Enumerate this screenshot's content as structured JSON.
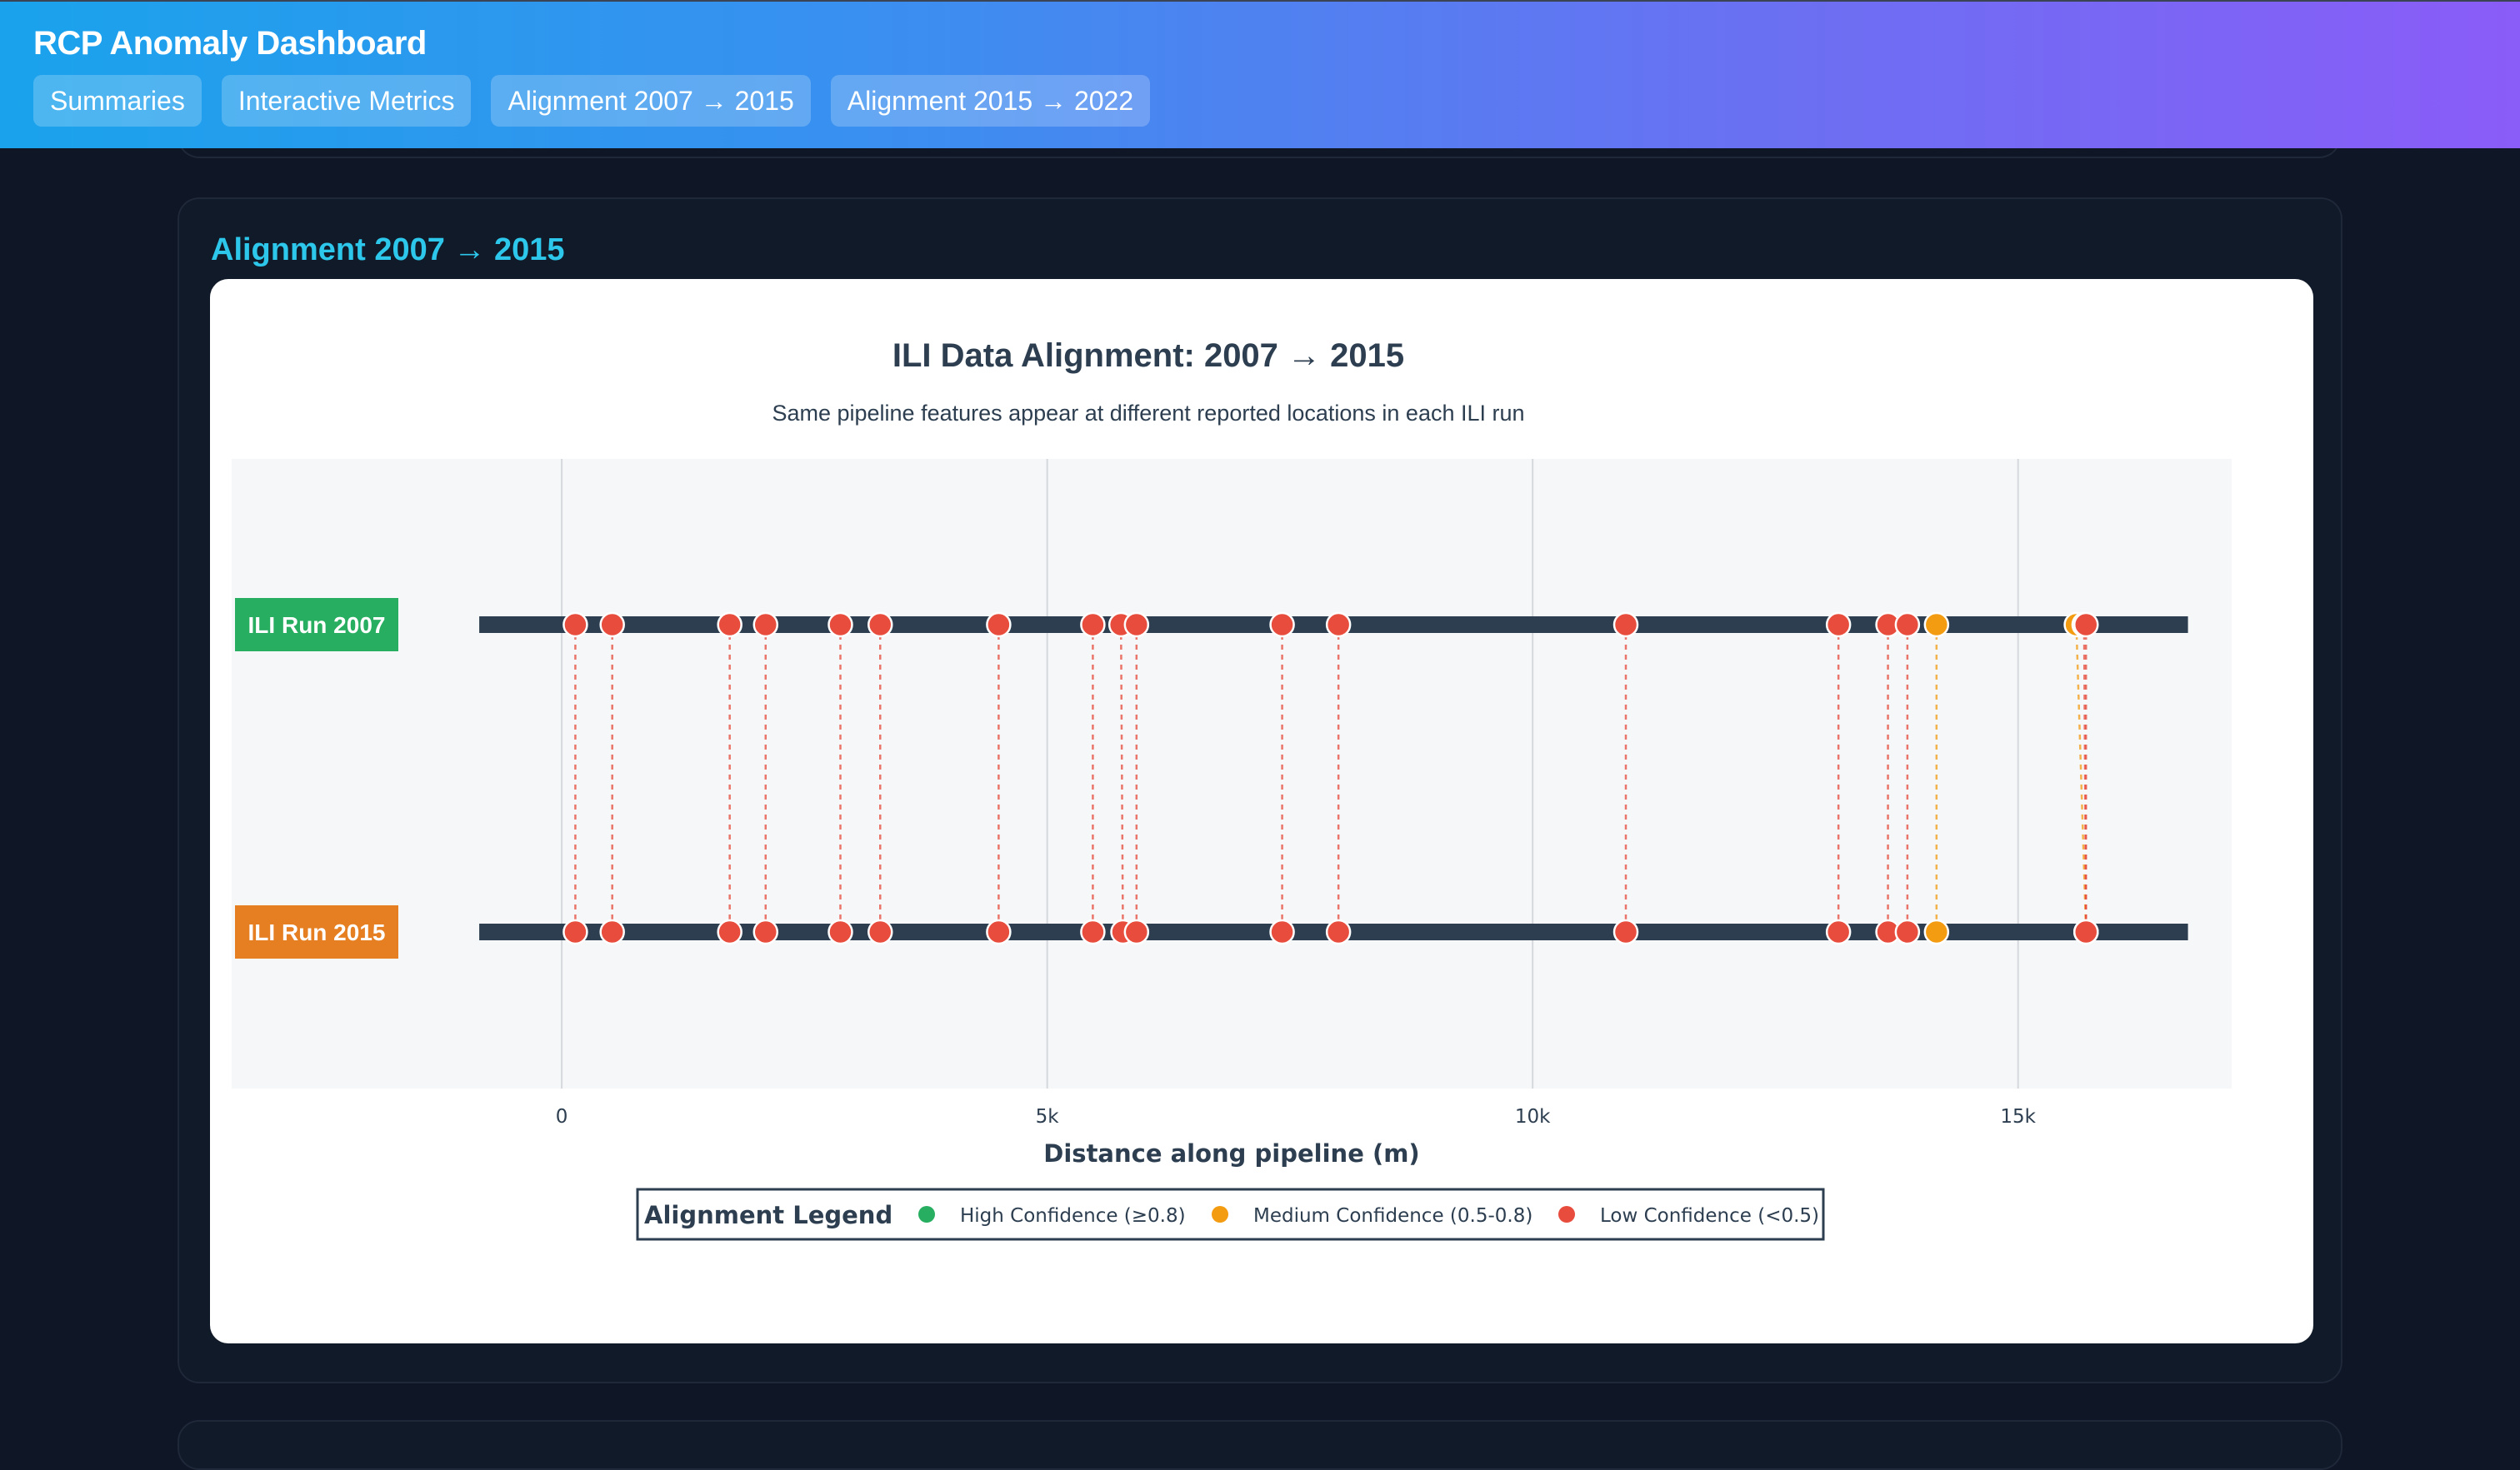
{
  "app": {
    "title": "RCP Anomaly Dashboard",
    "tabs": [
      "Summaries",
      "Interactive Metrics",
      "Alignment 2007 → 2015",
      "Alignment 2015 → 2022"
    ]
  },
  "section": {
    "title": "Alignment 2007 → 2015"
  },
  "colors": {
    "track": "#2c3e50",
    "high": "#27ae60",
    "medium": "#f39c12",
    "low": "#e74c3c",
    "run_a": "#27ae60",
    "run_b": "#e67e22"
  },
  "chart_data": {
    "type": "scatter",
    "title": "ILI Data Alignment: 2007 → 2015",
    "subtitle": "Same pipeline features appear at different reported locations in each ILI run",
    "xlabel": "Distance along pipeline (m)",
    "xlim": [
      -3400,
      17200
    ],
    "xticks": [
      0,
      5000,
      10000,
      15000
    ],
    "xtick_labels": [
      "0",
      "5k",
      "10k",
      "15k"
    ],
    "grid": true,
    "runs": [
      {
        "name": "ILI Run 2007",
        "color": "#27ae60"
      },
      {
        "name": "ILI Run 2015",
        "color": "#e67e22"
      }
    ],
    "track_range": [
      -850,
      16750
    ],
    "legend": {
      "title": "Alignment Legend",
      "placement": "bottom-center",
      "entries": [
        {
          "label": "High Confidence (≥0.8)",
          "color": "#27ae60"
        },
        {
          "label": "Medium Confidence (0.5-0.8)",
          "color": "#f39c12"
        },
        {
          "label": "Low Confidence (<0.5)",
          "color": "#e74c3c"
        }
      ]
    },
    "matches": [
      {
        "x2007": 140,
        "x2015": 140,
        "confidence": "low"
      },
      {
        "x2007": 520,
        "x2015": 520,
        "confidence": "low"
      },
      {
        "x2007": 1730,
        "x2015": 1730,
        "confidence": "low"
      },
      {
        "x2007": 2100,
        "x2015": 2100,
        "confidence": "low"
      },
      {
        "x2007": 2870,
        "x2015": 2870,
        "confidence": "low"
      },
      {
        "x2007": 3280,
        "x2015": 3280,
        "confidence": "low"
      },
      {
        "x2007": 4500,
        "x2015": 4500,
        "confidence": "low"
      },
      {
        "x2007": 5470,
        "x2015": 5470,
        "confidence": "low"
      },
      {
        "x2007": 5760,
        "x2015": 5780,
        "confidence": "low"
      },
      {
        "x2007": 5920,
        "x2015": 5920,
        "confidence": "low"
      },
      {
        "x2007": 7420,
        "x2015": 7420,
        "confidence": "low"
      },
      {
        "x2007": 8000,
        "x2015": 8000,
        "confidence": "low"
      },
      {
        "x2007": 10960,
        "x2015": 10960,
        "confidence": "low"
      },
      {
        "x2007": 13150,
        "x2015": 13150,
        "confidence": "low"
      },
      {
        "x2007": 13660,
        "x2015": 13660,
        "confidence": "low"
      },
      {
        "x2007": 13860,
        "x2015": 13860,
        "confidence": "low"
      },
      {
        "x2007": 14160,
        "x2015": 14160,
        "confidence": "medium"
      },
      {
        "x2007": 15600,
        "x2015": 15700,
        "confidence": "medium"
      },
      {
        "x2007": 15680,
        "x2015": 15700,
        "confidence": "low"
      },
      {
        "x2007": 15700,
        "x2015": 15700,
        "confidence": "low"
      }
    ]
  }
}
